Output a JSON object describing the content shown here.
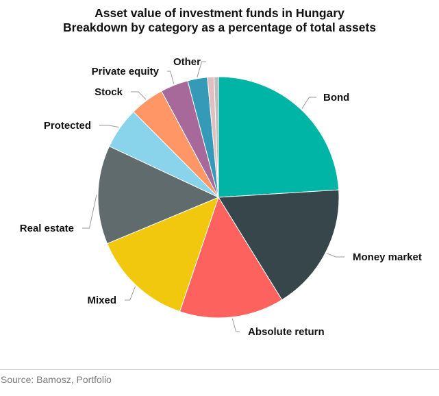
{
  "chart_data": {
    "type": "pie",
    "title": "Asset value of investment funds in Hungary",
    "subtitle": "Breakdown by category as a percentage of total assets",
    "slices": [
      {
        "label": "Bond",
        "value": 24.5,
        "color": "#00b5a5"
      },
      {
        "label": "Money market",
        "value": 17.5,
        "color": "#37464b"
      },
      {
        "label": "Absolute return",
        "value": 14.3,
        "color": "#fd625e"
      },
      {
        "label": "Mixed",
        "value": 13.8,
        "color": "#f2c80f"
      },
      {
        "label": "Real estate",
        "value": 13.5,
        "color": "#5f6b6d"
      },
      {
        "label": "Protected",
        "value": 5.7,
        "color": "#8ad4eb"
      },
      {
        "label": "Stock",
        "value": 4.7,
        "color": "#fe9666"
      },
      {
        "label": "Private equity",
        "value": 3.8,
        "color": "#a66999"
      },
      {
        "label": "Other",
        "value": 2.7,
        "color": "#3599b8"
      },
      {
        "label": "",
        "value": 0.9,
        "color": "#dfbfbf"
      },
      {
        "label": "",
        "value": 0.6,
        "color": "#bdbdbd"
      }
    ],
    "start": "top",
    "direction": "clockwise"
  },
  "source": "Source: Bamosz, Portfolio"
}
